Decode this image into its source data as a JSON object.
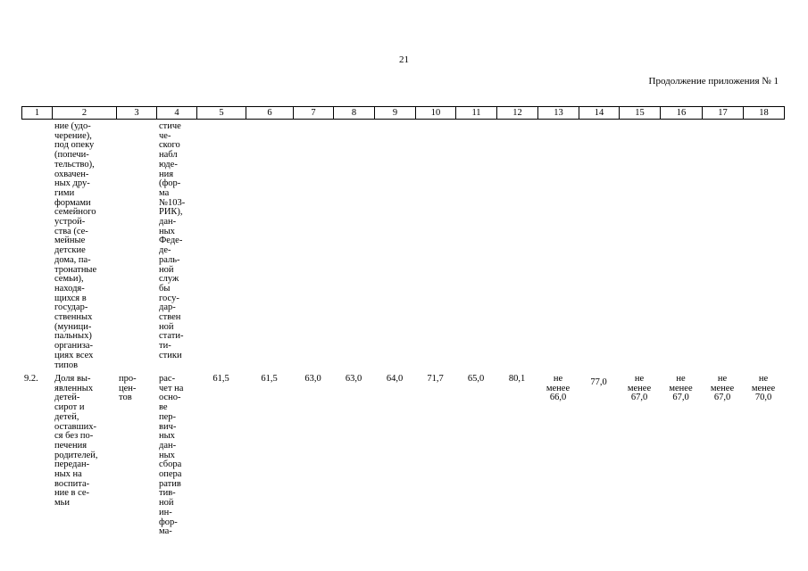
{
  "page_number": "21",
  "appendix_note": "Продолжение приложения № 1",
  "table": {
    "header": [
      "1",
      "2",
      "3",
      "4",
      "5",
      "6",
      "7",
      "8",
      "9",
      "10",
      "11",
      "12",
      "13",
      "14",
      "15",
      "16",
      "17",
      "18"
    ],
    "rows": [
      [
        [],
        [
          "ние (удо-",
          "черение),",
          "под опеку",
          "(попечи-",
          "тельство),",
          "охвачен-",
          "ных дру-",
          "гими",
          "формами",
          "семейного",
          "устрой-",
          "ства (се-",
          "мейные",
          "детские",
          "дома, па-",
          "тронатные",
          "семьи),",
          "находя-",
          "щихся в",
          "государ-",
          "ственных",
          "(муници-",
          "пальных)",
          "организа-",
          "циях всех",
          "типов"
        ],
        [],
        [
          "стиче",
          "че-",
          "ского",
          "набл",
          "юде-",
          "ния",
          "(фор-",
          "ма",
          "№103-",
          "РИК),",
          "дан-",
          "ных",
          "Феде-",
          "де-",
          "раль-",
          "ной",
          "служ",
          "бы",
          "госу-",
          "дар-",
          "ствен",
          "ной",
          "стати-",
          "ти-",
          "стики"
        ],
        [],
        [],
        [],
        [],
        [],
        [],
        [],
        [],
        [],
        [],
        [],
        [],
        [],
        []
      ],
      [
        [
          "9.2."
        ],
        [
          "Доля вы-",
          "явленных",
          "детей-",
          "сирот и",
          "детей,",
          "оставших-",
          "ся без по-",
          "печения",
          "родителей,",
          "передан-",
          "ных на",
          "воспита-",
          "ние в се-",
          "мьи"
        ],
        [
          "про-",
          "цен-",
          "тов"
        ],
        [
          "рас-",
          "чет на",
          "осно-",
          "ве",
          "пер-",
          "вич-",
          "ных",
          "дан-",
          "ных",
          "сбора",
          "опера",
          "ратив",
          "тив-",
          "ной",
          "ин-",
          "фор-",
          "ма-"
        ],
        [
          "61,5"
        ],
        [
          "61,5"
        ],
        [
          "63,0"
        ],
        [
          "63,0"
        ],
        [
          "64,0"
        ],
        [
          "71,7"
        ],
        [
          "65,0"
        ],
        [
          "80,1"
        ],
        [
          "не",
          "менее",
          "66,0"
        ],
        [
          "77,0"
        ],
        [
          "не",
          "менее",
          "67,0"
        ],
        [
          "не",
          "менее",
          "67,0"
        ],
        [
          "не",
          "менее",
          "67,0"
        ],
        [
          "не",
          "менее",
          "70,0"
        ]
      ]
    ]
  }
}
